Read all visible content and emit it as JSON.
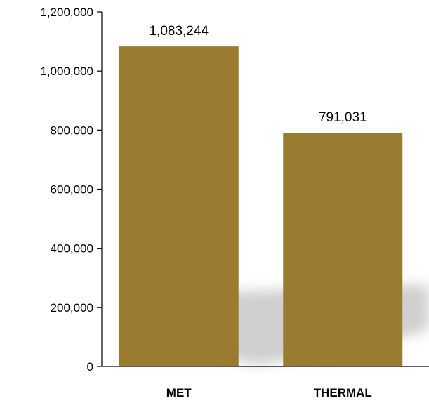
{
  "chart_data": {
    "type": "bar",
    "title": "",
    "xlabel": "",
    "ylabel": "",
    "categories": [
      "MET",
      "THERMAL"
    ],
    "values": [
      1083244,
      791031
    ],
    "data_labels": [
      "1,083,244",
      "791,031"
    ],
    "ylim": [
      0,
      1200000
    ],
    "yticks": [
      0,
      200000,
      400000,
      600000,
      800000,
      1000000,
      1200000
    ],
    "ytick_labels": [
      "0",
      "200,000",
      "400,000",
      "600,000",
      "800,000",
      "1,000,000",
      "1,200,000"
    ],
    "grid": false,
    "legend": "none",
    "colors": {
      "bar": "#9a7b30",
      "axis": "#000000",
      "shadow": "#b3b3b3"
    }
  }
}
